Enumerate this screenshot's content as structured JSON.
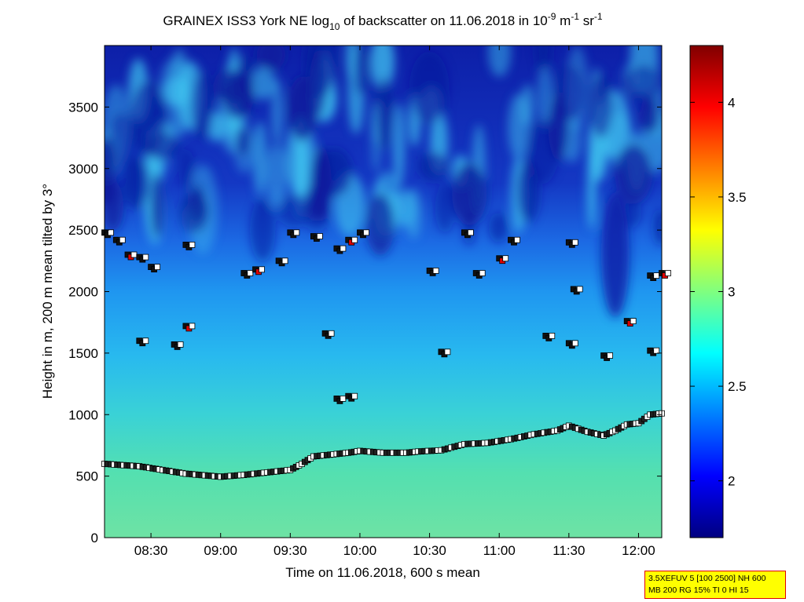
{
  "chart_data": {
    "type": "heatmap",
    "title": {
      "p1": "GRAINEX ISS3 York NE log",
      "sub": "10",
      "p2": " of backscatter on 11.06.2018 in 10",
      "sup1": "-9",
      "p3": " m",
      "sup2": "-1",
      "p4": " sr",
      "sup3": "-1"
    },
    "xlabel": "Time on 11.06.2018, 600 s mean",
    "ylabel": "Height in m, 200 m mean tilted by 3°",
    "x_range": [
      "08:10",
      "12:10"
    ],
    "ylim": [
      0,
      4000
    ],
    "x_ticks": [
      "08:30",
      "09:00",
      "09:30",
      "10:00",
      "10:30",
      "11:00",
      "11:30",
      "12:00"
    ],
    "y_ticks": [
      "0",
      "500",
      "1000",
      "1500",
      "2000",
      "2500",
      "3000",
      "3500"
    ],
    "colorbar": {
      "range": [
        1.7,
        4.3
      ],
      "ticks": [
        "2",
        "2.5",
        "3",
        "3.5",
        "4"
      ]
    },
    "boundary_layer_height": [
      [
        "08:10",
        600
      ],
      [
        "08:25",
        580
      ],
      [
        "08:35",
        550
      ],
      [
        "08:45",
        520
      ],
      [
        "09:00",
        495
      ],
      [
        "09:10",
        510
      ],
      [
        "09:20",
        530
      ],
      [
        "09:30",
        550
      ],
      [
        "09:35",
        600
      ],
      [
        "09:40",
        660
      ],
      [
        "09:50",
        680
      ],
      [
        "09:55",
        690
      ],
      [
        "10:00",
        705
      ],
      [
        "10:10",
        690
      ],
      [
        "10:20",
        690
      ],
      [
        "10:25",
        700
      ],
      [
        "10:35",
        710
      ],
      [
        "10:45",
        760
      ],
      [
        "10:55",
        770
      ],
      [
        "11:05",
        800
      ],
      [
        "11:15",
        840
      ],
      [
        "11:25",
        870
      ],
      [
        "11:30",
        910
      ],
      [
        "11:38",
        860
      ],
      [
        "11:45",
        830
      ],
      [
        "11:50",
        870
      ],
      [
        "11:55",
        920
      ],
      [
        "12:00",
        930
      ],
      [
        "12:05",
        1000
      ],
      [
        "12:10",
        1010
      ]
    ],
    "aerosol_layer_points": [
      [
        "08:10",
        2480
      ],
      [
        "08:15",
        2420
      ],
      [
        "08:20",
        2300
      ],
      [
        "08:25",
        2280
      ],
      [
        "08:30",
        2200
      ],
      [
        "08:45",
        2380
      ],
      [
        "09:10",
        2150
      ],
      [
        "09:15",
        2180
      ],
      [
        "09:25",
        2250
      ],
      [
        "09:30",
        2480
      ],
      [
        "09:40",
        2450
      ],
      [
        "09:50",
        2350
      ],
      [
        "09:55",
        2420
      ],
      [
        "10:00",
        2480
      ],
      [
        "10:30",
        2170
      ],
      [
        "10:45",
        2480
      ],
      [
        "10:50",
        2150
      ],
      [
        "11:00",
        2270
      ],
      [
        "11:05",
        2420
      ],
      [
        "11:30",
        2400
      ],
      [
        "11:32",
        2020
      ],
      [
        "12:05",
        2130
      ],
      [
        "12:10",
        2150
      ],
      [
        "09:45",
        1660
      ],
      [
        "09:50",
        1130
      ],
      [
        "09:55",
        1150
      ],
      [
        "08:40",
        1570
      ],
      [
        "08:45",
        1720
      ],
      [
        "10:35",
        1510
      ],
      [
        "11:20",
        1640
      ],
      [
        "11:30",
        1580
      ],
      [
        "11:45",
        1480
      ],
      [
        "11:55",
        1760
      ],
      [
        "12:05",
        1520
      ],
      [
        "08:25",
        1600
      ]
    ],
    "info_box": [
      "3.5XEFUV 5 [100 2500] NH 600",
      "MB 200 RG 15% TI 0 HI 15"
    ]
  }
}
